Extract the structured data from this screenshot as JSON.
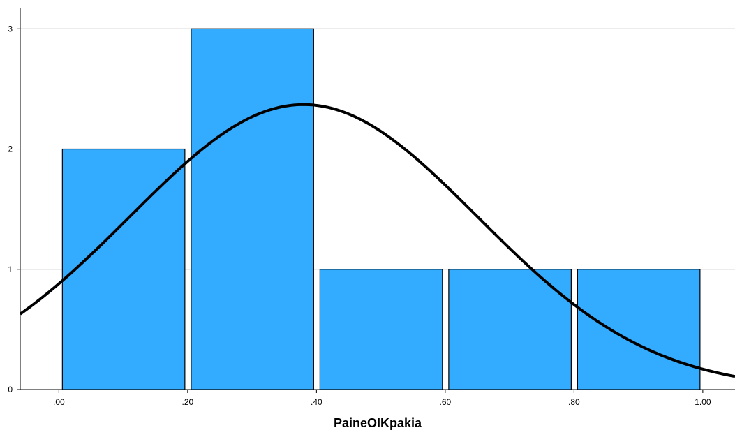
{
  "chart_data": {
    "type": "bar",
    "subtype": "histogram",
    "xlabel": "PaineOIKpakia",
    "ylabel": "",
    "bins": [
      {
        "start": 0.0,
        "end": 0.2,
        "count": 2
      },
      {
        "start": 0.2,
        "end": 0.4,
        "count": 3
      },
      {
        "start": 0.4,
        "end": 0.6,
        "count": 1
      },
      {
        "start": 0.6,
        "end": 0.8,
        "count": 1
      },
      {
        "start": 0.8,
        "end": 1.0,
        "count": 1
      }
    ],
    "xlim": [
      -0.06,
      1.05
    ],
    "ylim": [
      0,
      3.17
    ],
    "x_ticks": [
      0.0,
      0.2,
      0.4,
      0.6,
      0.8,
      1.0
    ],
    "x_tick_labels": [
      ".00",
      ".20",
      ".40",
      ".60",
      ".80",
      "1.00"
    ],
    "y_ticks": [
      0,
      1,
      2,
      3
    ],
    "y_tick_labels": [
      "0",
      "1",
      "2",
      "3"
    ],
    "grid": "horizontal",
    "normal_curve": {
      "mean": 0.38,
      "sd": 0.27,
      "peak": 2.37
    },
    "colors": {
      "bar_fill": "#33abff",
      "bar_stroke": "#000000",
      "curve": "#000000",
      "grid": "#b3b3b3"
    }
  }
}
